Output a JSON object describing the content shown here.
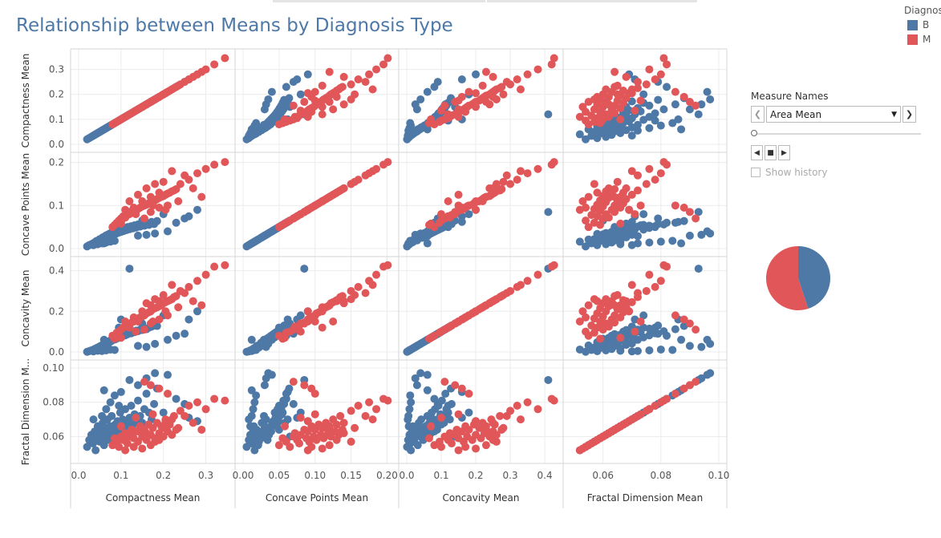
{
  "title": "Relationship between Means by Diagnosis Type",
  "legend": {
    "title": "Diagnos",
    "items": [
      {
        "label": "B",
        "color": "#4e79a7"
      },
      {
        "label": "M",
        "color": "#e15759"
      }
    ]
  },
  "filter": {
    "label": "Measure Names",
    "selected": "Area Mean",
    "show_history_label": "Show history",
    "show_history_checked": false,
    "slider_position": 0
  },
  "chart_data": {
    "type": "scatter",
    "variables": [
      {
        "name": "Compactness Mean",
        "row_label": "Compactness Mean",
        "col_label": "Compactness Mean",
        "range": [
          0.0,
          0.35
        ],
        "ticks": [
          "0.0",
          "0.1",
          "0.2",
          "0.3"
        ],
        "tick_values": [
          0.0,
          0.1,
          0.2,
          0.3
        ]
      },
      {
        "name": "Concave Points Mean",
        "row_label": "Concave Points Mean",
        "col_label": "Concave Points Mean",
        "range": [
          0.0,
          0.205
        ],
        "ticks": [
          "0.0",
          "0.1",
          "0.2"
        ],
        "tick_values": [
          0.0,
          0.1,
          0.2
        ],
        "col_ticks": [
          "0.00",
          "0.05",
          "0.10",
          "0.15",
          "0.20"
        ],
        "col_tick_values": [
          0.0,
          0.05,
          0.1,
          0.15,
          0.2
        ]
      },
      {
        "name": "Concavity Mean",
        "row_label": "Concavity Mean",
        "col_label": "Concavity Mean",
        "range": [
          0.0,
          0.43
        ],
        "ticks": [
          "0.0",
          "0.2",
          "0.4"
        ],
        "tick_values": [
          0.0,
          0.2,
          0.4
        ],
        "col_ticks": [
          "0.0",
          "0.1",
          "0.2",
          "0.3",
          "0.4"
        ],
        "col_tick_values": [
          0.0,
          0.1,
          0.2,
          0.3,
          0.4
        ]
      },
      {
        "name": "Fractal Dimension Mean",
        "row_label": "Fractal Dimension M...",
        "col_label": "Fractal Dimension Mean",
        "range": [
          0.049,
          0.1
        ],
        "ticks": [
          "0.06",
          "0.08",
          "0.10"
        ],
        "tick_values": [
          0.06,
          0.08,
          0.1
        ],
        "col_ticks": [
          "0.06",
          "0.08",
          "0.10"
        ],
        "col_tick_values": [
          0.06,
          0.08,
          0.1
        ]
      }
    ],
    "series": [
      {
        "name": "B",
        "color": "#4e79a7",
        "points": [
          [
            0.02,
            0.005,
            0.001,
            0.054
          ],
          [
            0.025,
            0.008,
            0.004,
            0.058
          ],
          [
            0.03,
            0.01,
            0.008,
            0.061
          ],
          [
            0.034,
            0.012,
            0.01,
            0.056
          ],
          [
            0.038,
            0.014,
            0.015,
            0.063
          ],
          [
            0.04,
            0.016,
            0.012,
            0.052
          ],
          [
            0.043,
            0.018,
            0.02,
            0.059
          ],
          [
            0.046,
            0.015,
            0.018,
            0.066
          ],
          [
            0.048,
            0.02,
            0.025,
            0.061
          ],
          [
            0.05,
            0.022,
            0.022,
            0.057
          ],
          [
            0.052,
            0.019,
            0.03,
            0.064
          ],
          [
            0.055,
            0.024,
            0.028,
            0.06
          ],
          [
            0.057,
            0.026,
            0.035,
            0.068
          ],
          [
            0.06,
            0.021,
            0.032,
            0.055
          ],
          [
            0.062,
            0.028,
            0.04,
            0.062
          ],
          [
            0.064,
            0.03,
            0.038,
            0.065
          ],
          [
            0.066,
            0.025,
            0.045,
            0.059
          ],
          [
            0.068,
            0.032,
            0.042,
            0.07
          ],
          [
            0.07,
            0.027,
            0.05,
            0.063
          ],
          [
            0.072,
            0.034,
            0.048,
            0.058
          ],
          [
            0.074,
            0.03,
            0.055,
            0.066
          ],
          [
            0.076,
            0.036,
            0.052,
            0.061
          ],
          [
            0.078,
            0.029,
            0.06,
            0.072
          ],
          [
            0.08,
            0.038,
            0.058,
            0.064
          ],
          [
            0.083,
            0.033,
            0.065,
            0.06
          ],
          [
            0.086,
            0.04,
            0.062,
            0.067
          ],
          [
            0.089,
            0.035,
            0.07,
            0.062
          ],
          [
            0.092,
            0.042,
            0.068,
            0.069
          ],
          [
            0.095,
            0.037,
            0.075,
            0.065
          ],
          [
            0.098,
            0.044,
            0.072,
            0.074
          ],
          [
            0.101,
            0.039,
            0.08,
            0.063
          ],
          [
            0.104,
            0.046,
            0.078,
            0.07
          ],
          [
            0.107,
            0.041,
            0.085,
            0.066
          ],
          [
            0.11,
            0.048,
            0.082,
            0.076
          ],
          [
            0.113,
            0.043,
            0.09,
            0.068
          ],
          [
            0.116,
            0.05,
            0.088,
            0.064
          ],
          [
            0.12,
            0.045,
            0.095,
            0.071
          ],
          [
            0.124,
            0.052,
            0.092,
            0.078
          ],
          [
            0.128,
            0.047,
            0.1,
            0.067
          ],
          [
            0.132,
            0.054,
            0.098,
            0.073
          ],
          [
            0.136,
            0.049,
            0.105,
            0.069
          ],
          [
            0.14,
            0.056,
            0.102,
            0.081
          ],
          [
            0.145,
            0.051,
            0.11,
            0.072
          ],
          [
            0.15,
            0.058,
            0.108,
            0.068
          ],
          [
            0.155,
            0.053,
            0.115,
            0.076
          ],
          [
            0.16,
            0.06,
            0.112,
            0.085
          ],
          [
            0.166,
            0.055,
            0.12,
            0.074
          ],
          [
            0.172,
            0.062,
            0.125,
            0.07
          ],
          [
            0.178,
            0.057,
            0.13,
            0.079
          ],
          [
            0.185,
            0.064,
            0.128,
            0.088
          ],
          [
            0.055,
            0.012,
            0.005,
            0.072
          ],
          [
            0.065,
            0.014,
            0.008,
            0.076
          ],
          [
            0.075,
            0.016,
            0.012,
            0.08
          ],
          [
            0.085,
            0.018,
            0.01,
            0.084
          ],
          [
            0.045,
            0.01,
            0.006,
            0.066
          ],
          [
            0.035,
            0.008,
            0.003,
            0.07
          ],
          [
            0.14,
            0.03,
            0.03,
            0.09
          ],
          [
            0.16,
            0.032,
            0.025,
            0.094
          ],
          [
            0.18,
            0.035,
            0.04,
            0.097
          ],
          [
            0.21,
            0.04,
            0.06,
            0.096
          ],
          [
            0.23,
            0.06,
            0.08,
            0.082
          ],
          [
            0.25,
            0.07,
            0.09,
            0.079
          ],
          [
            0.12,
            0.085,
            0.41,
            0.093
          ],
          [
            0.1,
            0.062,
            0.16,
            0.086
          ],
          [
            0.095,
            0.05,
            0.12,
            0.078
          ],
          [
            0.2,
            0.08,
            0.18,
            0.074
          ],
          [
            0.26,
            0.075,
            0.16,
            0.071
          ],
          [
            0.15,
            0.065,
            0.14,
            0.06
          ],
          [
            0.06,
            0.012,
            0.06,
            0.087
          ],
          [
            0.28,
            0.09,
            0.2,
            0.069
          ]
        ]
      },
      {
        "name": "M",
        "color": "#e15759",
        "points": [
          [
            0.08,
            0.05,
            0.08,
            0.055
          ],
          [
            0.09,
            0.06,
            0.095,
            0.057
          ],
          [
            0.095,
            0.065,
            0.1,
            0.054
          ],
          [
            0.1,
            0.07,
            0.11,
            0.06
          ],
          [
            0.105,
            0.075,
            0.12,
            0.058
          ],
          [
            0.11,
            0.072,
            0.125,
            0.062
          ],
          [
            0.115,
            0.078,
            0.13,
            0.056
          ],
          [
            0.12,
            0.08,
            0.14,
            0.061
          ],
          [
            0.125,
            0.085,
            0.145,
            0.064
          ],
          [
            0.13,
            0.088,
            0.15,
            0.059
          ],
          [
            0.135,
            0.09,
            0.16,
            0.063
          ],
          [
            0.14,
            0.092,
            0.165,
            0.057
          ],
          [
            0.145,
            0.095,
            0.17,
            0.066
          ],
          [
            0.15,
            0.098,
            0.175,
            0.06
          ],
          [
            0.155,
            0.1,
            0.18,
            0.064
          ],
          [
            0.16,
            0.102,
            0.19,
            0.058
          ],
          [
            0.165,
            0.105,
            0.195,
            0.067
          ],
          [
            0.17,
            0.108,
            0.2,
            0.061
          ],
          [
            0.175,
            0.11,
            0.21,
            0.065
          ],
          [
            0.18,
            0.112,
            0.215,
            0.059
          ],
          [
            0.185,
            0.115,
            0.22,
            0.068
          ],
          [
            0.19,
            0.118,
            0.225,
            0.062
          ],
          [
            0.195,
            0.12,
            0.23,
            0.066
          ],
          [
            0.2,
            0.122,
            0.24,
            0.06
          ],
          [
            0.205,
            0.125,
            0.245,
            0.07
          ],
          [
            0.21,
            0.128,
            0.25,
            0.063
          ],
          [
            0.215,
            0.13,
            0.255,
            0.067
          ],
          [
            0.22,
            0.133,
            0.26,
            0.061
          ],
          [
            0.225,
            0.135,
            0.27,
            0.072
          ],
          [
            0.23,
            0.138,
            0.275,
            0.064
          ],
          [
            0.11,
            0.09,
            0.15,
            0.052
          ],
          [
            0.13,
            0.095,
            0.17,
            0.054
          ],
          [
            0.15,
            0.11,
            0.2,
            0.053
          ],
          [
            0.17,
            0.12,
            0.23,
            0.055
          ],
          [
            0.19,
            0.13,
            0.25,
            0.058
          ],
          [
            0.16,
            0.14,
            0.24,
            0.062
          ],
          [
            0.18,
            0.15,
            0.26,
            0.057
          ],
          [
            0.2,
            0.155,
            0.28,
            0.065
          ],
          [
            0.12,
            0.11,
            0.12,
            0.06
          ],
          [
            0.14,
            0.125,
            0.15,
            0.063
          ],
          [
            0.24,
            0.15,
            0.3,
            0.075
          ],
          [
            0.26,
            0.16,
            0.32,
            0.078
          ],
          [
            0.28,
            0.175,
            0.35,
            0.08
          ],
          [
            0.3,
            0.185,
            0.38,
            0.076
          ],
          [
            0.32,
            0.195,
            0.42,
            0.082
          ],
          [
            0.345,
            0.201,
            0.427,
            0.081
          ],
          [
            0.22,
            0.18,
            0.33,
            0.07
          ],
          [
            0.25,
            0.17,
            0.29,
            0.072
          ],
          [
            0.27,
            0.14,
            0.25,
            0.068
          ],
          [
            0.29,
            0.12,
            0.23,
            0.064
          ],
          [
            0.21,
            0.1,
            0.18,
            0.085
          ],
          [
            0.19,
            0.095,
            0.16,
            0.088
          ],
          [
            0.17,
            0.085,
            0.14,
            0.09
          ],
          [
            0.155,
            0.07,
            0.11,
            0.092
          ],
          [
            0.1,
            0.058,
            0.07,
            0.066
          ],
          [
            0.085,
            0.055,
            0.065,
            0.059
          ],
          [
            0.135,
            0.08,
            0.1,
            0.071
          ],
          [
            0.175,
            0.1,
            0.15,
            0.073
          ],
          [
            0.205,
            0.09,
            0.2,
            0.069
          ],
          [
            0.235,
            0.11,
            0.22,
            0.065
          ]
        ]
      }
    ],
    "grid": true,
    "legend_position": "top-right"
  },
  "pie": {
    "slices": [
      {
        "label": "B",
        "value": 0.45,
        "color": "#4e79a7"
      },
      {
        "label": "M",
        "value": 0.55,
        "color": "#e15759"
      }
    ]
  }
}
